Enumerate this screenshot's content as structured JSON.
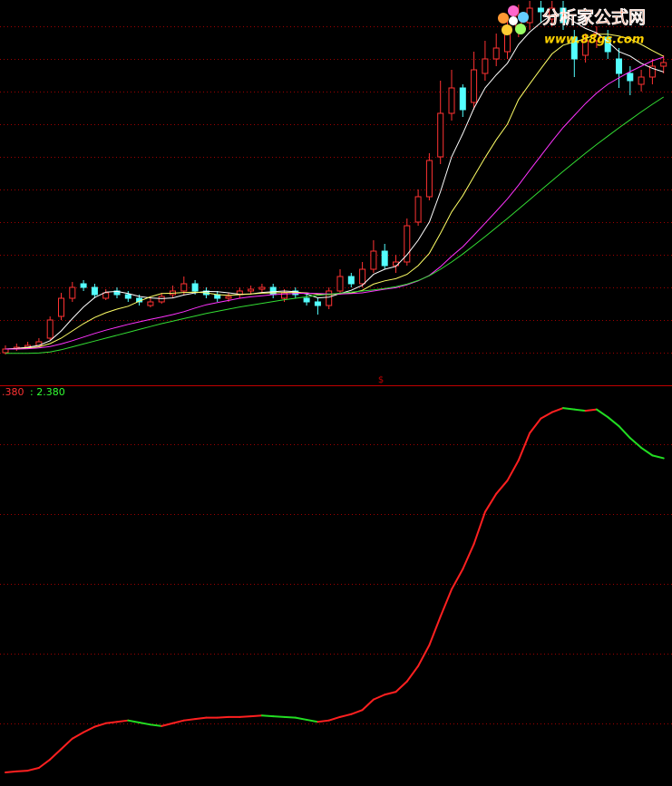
{
  "watermark": {
    "title": "分析家公式网",
    "url": "www.88gs.com"
  },
  "chart_data": [
    {
      "type": "candlestick",
      "marker": "$",
      "up_color": "#ff3232",
      "down_color": "#54ffff",
      "open": [
        9,
        10,
        10.5,
        11,
        13,
        19,
        24,
        28,
        27,
        24,
        26,
        25,
        24,
        22,
        23,
        25,
        26,
        28,
        26,
        25,
        24,
        25,
        26,
        26.5,
        27,
        24,
        26,
        24,
        23,
        22,
        26,
        30,
        28,
        32,
        37,
        33,
        34,
        45,
        52,
        63,
        75,
        82,
        78,
        86,
        90,
        92,
        98,
        100,
        104,
        101,
        104,
        96,
        91,
        95,
        96,
        90,
        86,
        83,
        85,
        88
      ],
      "high": [
        11,
        11.5,
        12,
        13,
        19,
        25.5,
        28.5,
        29,
        28,
        26.5,
        27,
        26,
        25,
        24,
        25.5,
        27.5,
        30,
        29,
        27,
        26,
        25.5,
        27,
        27.5,
        28,
        28,
        26.5,
        27,
        25,
        24,
        27,
        32,
        31,
        34,
        40,
        39,
        36,
        46,
        54,
        64,
        84,
        87,
        83,
        92,
        95,
        97,
        102,
        105,
        106,
        106,
        106,
        106,
        98,
        97,
        99,
        98,
        93,
        88,
        87,
        90,
        91
      ],
      "low": [
        8.5,
        9.5,
        10,
        10.5,
        12.5,
        18,
        23,
        26,
        24,
        23.5,
        24,
        23,
        22,
        21.5,
        22.5,
        24,
        25,
        25,
        24,
        23,
        23,
        24,
        25,
        25.5,
        24,
        23,
        24,
        22,
        19.5,
        21,
        25,
        27,
        27,
        31,
        32,
        31,
        33,
        44,
        51,
        61,
        73,
        74,
        76,
        84,
        88,
        90,
        96,
        98,
        100,
        99,
        98,
        85,
        89,
        93,
        90,
        82,
        80,
        81,
        83,
        86
      ],
      "close": [
        10,
        10.5,
        11,
        12,
        18,
        24,
        27,
        27,
        25,
        25.5,
        25,
        24,
        23,
        23,
        24.5,
        26,
        28,
        26,
        25,
        24,
        24.5,
        26,
        26.5,
        27,
        25,
        25.5,
        25,
        23,
        22,
        26,
        30,
        28,
        32,
        37,
        33,
        34,
        44,
        52,
        62,
        75,
        82,
        76,
        87,
        90,
        93,
        98,
        102,
        104,
        103,
        104,
        100,
        90,
        95,
        97,
        92,
        86,
        84,
        85,
        88,
        89
      ],
      "series": [
        {
          "color": "#ffffff",
          "values": [
            10,
            10.2,
            10.5,
            11,
            12.3,
            15,
            18.4,
            21.6,
            24.2,
            25.7,
            25.9,
            25.3,
            24.5,
            24.1,
            23.9,
            24.1,
            24.9,
            25.5,
            25.9,
            25.8,
            25.5,
            25.1,
            25.2,
            25.6,
            25.8,
            26,
            25.8,
            25.2,
            24.1,
            24.3,
            25.3,
            26.2,
            27.6,
            30.6,
            32,
            32.8,
            36,
            40,
            45,
            53.4,
            63,
            69.4,
            76.4,
            82,
            85.6,
            88.8,
            94,
            97.4,
            100,
            102.2,
            102.6,
            100.2,
            98.4,
            97.2,
            94.8,
            92,
            90.8,
            88.8,
            87.4,
            86.4
          ]
        },
        {
          "color": "#ffff66",
          "values": [
            10,
            10.1,
            10.3,
            10.6,
            11.5,
            13,
            15,
            17,
            18.7,
            20,
            21,
            21.8,
            23.2,
            24.4,
            25.3,
            25.4,
            25.6,
            25.7,
            25.5,
            25,
            24.8,
            25,
            25.2,
            25.4,
            25.5,
            25.6,
            25.6,
            25.5,
            25.1,
            25,
            25.2,
            25.4,
            26.2,
            27.9,
            28.8,
            29.4,
            30.6,
            33,
            36.4,
            41.9,
            47.8,
            52.3,
            57.6,
            62.8,
            67.7,
            72,
            78.8,
            83.1,
            87.3,
            91.4,
            93.8,
            94.7,
            95.6,
            96.8,
            96.8,
            96.3,
            95.5,
            94,
            92.3,
            90.7
          ]
        },
        {
          "color": "#ff33ff",
          "values": [
            10,
            10,
            10.1,
            10.3,
            10.7,
            11.4,
            12.3,
            13.3,
            14.3,
            15.2,
            16,
            16.8,
            17.5,
            18.2,
            18.8,
            19.5,
            20.3,
            21.3,
            22.2,
            22.8,
            23.4,
            24,
            24.4,
            24.7,
            25,
            25.2,
            25.3,
            25.4,
            25.3,
            25.2,
            25.2,
            25.3,
            25.5,
            26,
            26.5,
            26.9,
            27.7,
            28.8,
            30.3,
            32.7,
            35.6,
            38.2,
            41.4,
            44.7,
            48,
            51.4,
            55.2,
            59.3,
            63.3,
            67.3,
            71.1,
            74.4,
            77.7,
            80.6,
            83,
            84.8,
            86.5,
            88,
            89.5,
            90.5
          ]
        },
        {
          "color": "#33dd33",
          "values": [
            8.8,
            8.8,
            8.8,
            8.9,
            9.2,
            9.8,
            10.6,
            11.4,
            12.2,
            13,
            13.8,
            14.6,
            15.4,
            16.2,
            17,
            17.7,
            18.4,
            19.1,
            19.8,
            20.4,
            21,
            21.6,
            22.1,
            22.6,
            23.1,
            23.6,
            24,
            24.4,
            24.8,
            25.1,
            25.4,
            25.7,
            26,
            26.3,
            26.7,
            27.2,
            27.9,
            28.9,
            30.2,
            32,
            34,
            36.2,
            38.6,
            41,
            43.5,
            46,
            48.6,
            51.2,
            53.8,
            56.4,
            59,
            61.5,
            64,
            66.4,
            68.7,
            71,
            73.2,
            75.4,
            77.5,
            79.5
          ]
        }
      ],
      "ylim": [
        0,
        106.25
      ],
      "yticks": [
        9,
        18,
        27,
        36,
        45,
        54,
        63,
        72,
        81,
        90,
        99
      ],
      "grid": true
    },
    {
      "type": "line",
      "readout_labels": [
        ".380",
        ": 2.380"
      ],
      "readout_colors": [
        "#ff3232",
        "#33ff33"
      ],
      "up_color": "#ff2020",
      "down_color": "#22dd22",
      "values": [
        1.9295,
        1.931,
        1.932,
        1.936,
        1.948,
        1.963,
        1.978,
        1.987,
        1.995,
        2.0,
        2.002,
        2.004,
        2.001,
        1.998,
        1.996,
        2.0,
        2.004,
        2.006,
        2.008,
        2.008,
        2.009,
        2.009,
        2.01,
        2.011,
        2.01,
        2.009,
        2.008,
        2.005,
        2.002,
        2.004,
        2.009,
        2.013,
        2.019,
        2.034,
        2.041,
        2.045,
        2.06,
        2.082,
        2.112,
        2.153,
        2.192,
        2.221,
        2.257,
        2.303,
        2.329,
        2.348,
        2.377,
        2.416,
        2.437,
        2.446,
        2.452,
        2.45,
        2.448,
        2.45,
        2.439,
        2.426,
        2.409,
        2.395,
        2.384,
        2.38
      ],
      "ylim": [
        1.91,
        2.482
      ],
      "yticks": [
        2.0,
        2.1,
        2.2,
        2.3,
        2.4
      ],
      "grid": true
    }
  ]
}
